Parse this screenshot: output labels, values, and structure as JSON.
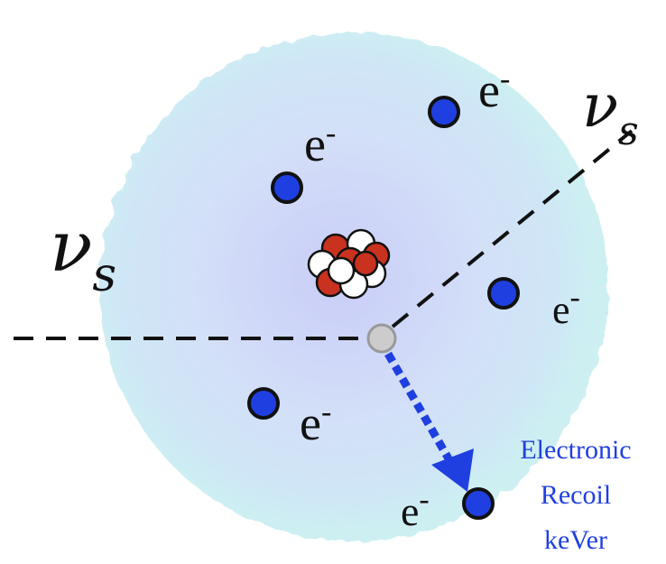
{
  "electrons": [
    {
      "label": "e",
      "charge": "-"
    },
    {
      "label": "e",
      "charge": "-"
    },
    {
      "label": "e",
      "charge": "-"
    },
    {
      "label": "e",
      "charge": "-"
    },
    {
      "label": "e",
      "charge": "-"
    }
  ],
  "neutrino_in": {
    "symbol": "ν",
    "subscript": "s"
  },
  "neutrino_out": {
    "symbol": "ν",
    "subscript": "s"
  },
  "annotation": [
    "Electronic",
    "Recoil",
    "keVer"
  ]
}
